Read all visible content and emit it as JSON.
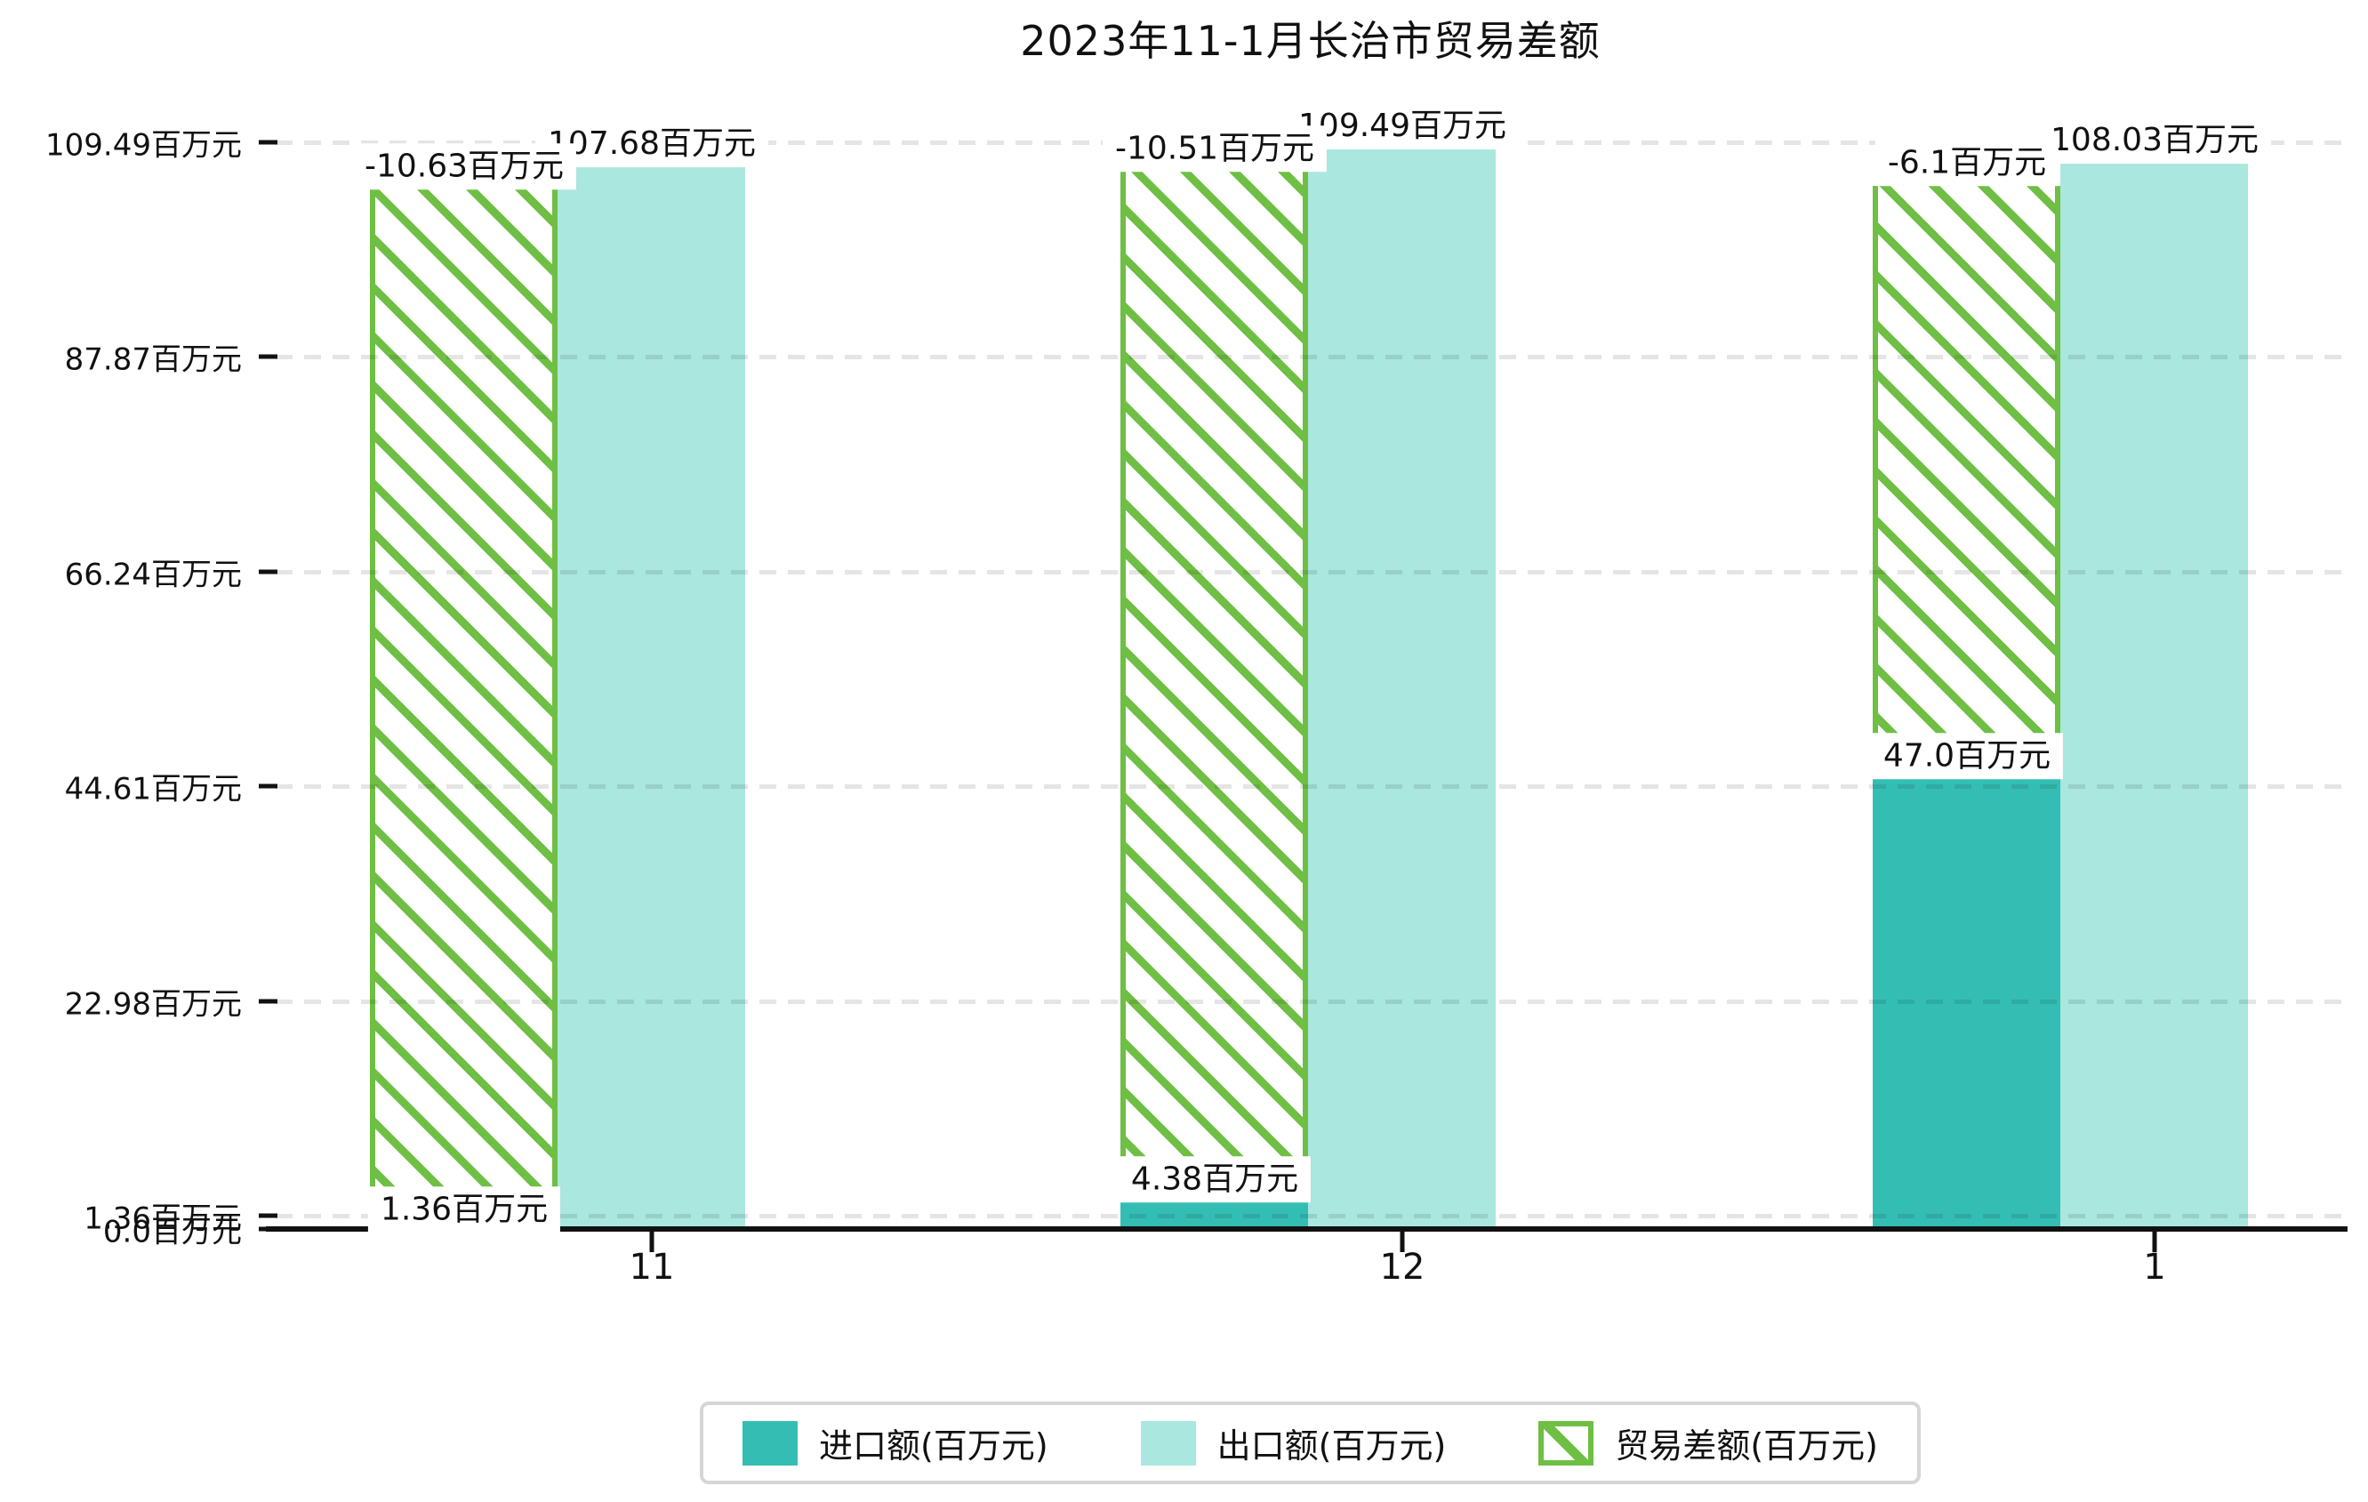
{
  "chart_data": {
    "type": "bar",
    "title": "2023年11-1月长治市贸易差额",
    "categories": [
      "11",
      "12",
      "1"
    ],
    "unit": "百万元",
    "series": [
      {
        "name": "进口额(百万元)",
        "color": "#34beb3",
        "style": "solid",
        "values": [
          1.36,
          4.38,
          47.0
        ],
        "data_labels": [
          "1.36百万元",
          "4.38百万元",
          "47.0百万元"
        ]
      },
      {
        "name": "出口额(百万元)",
        "color": "#a9e7df",
        "style": "solid",
        "values": [
          107.68,
          109.49,
          108.03
        ],
        "data_labels": [
          "107.68百万元",
          "109.49百万元",
          "108.03百万元"
        ]
      },
      {
        "name": "贸易差额(百万元)",
        "color": "#6ebf44",
        "style": "hatched /",
        "values": [
          -10.63,
          -10.51,
          -6.1
        ],
        "data_labels": [
          "-10.63百万元",
          "-10.51百万元",
          "-6.1百万元"
        ]
      }
    ],
    "yticks": [
      {
        "value": 0.0,
        "label": "0.0百万元"
      },
      {
        "value": 1.36,
        "label": "1.36百万元"
      },
      {
        "value": 22.98,
        "label": "22.98百万元"
      },
      {
        "value": 44.61,
        "label": "44.61百万元"
      },
      {
        "value": 66.24,
        "label": "66.24百万元"
      },
      {
        "value": 87.87,
        "label": "87.87百万元"
      },
      {
        "value": 109.49,
        "label": "109.49百万元"
      }
    ],
    "ylim": [
      0,
      109.49
    ],
    "grid": "horizontal-dashed",
    "legend_position": "bottom-center"
  }
}
